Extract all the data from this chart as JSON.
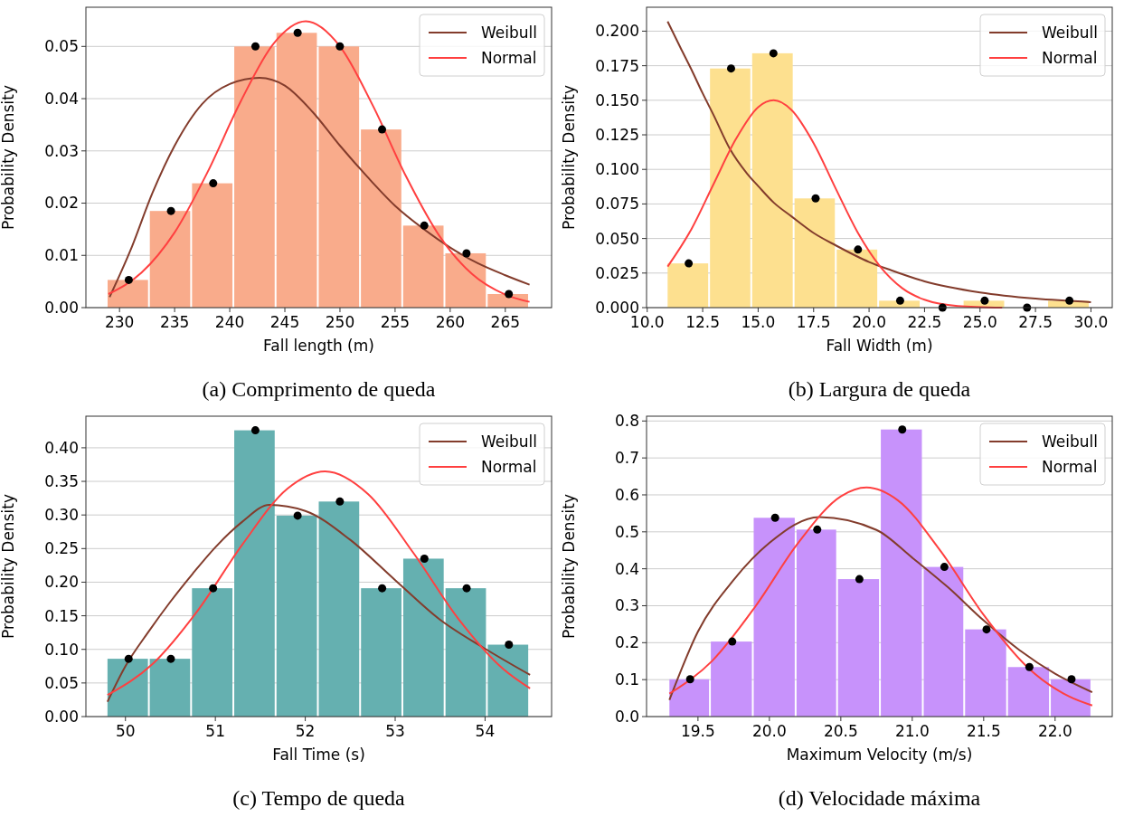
{
  "chart_data": [
    {
      "type": "histogram",
      "title": "(a) Comprimento de queda",
      "xlabel": "Fall length (m)",
      "ylabel": "Probability Density",
      "color": "#f9ab8b",
      "grid": "y",
      "legend": "top right",
      "bins": [
        228.92,
        232.75,
        236.58,
        240.41,
        244.24,
        248.07,
        251.9,
        255.73,
        259.56,
        263.4,
        267.23
      ],
      "values": [
        0.0053,
        0.0185,
        0.0238,
        0.05,
        0.0526,
        0.05,
        0.0341,
        0.0157,
        0.0104,
        0.0026
      ],
      "series": [
        {
          "type": "line",
          "name": "Weibull",
          "color": "#833c2c",
          "x": [
            229.1,
            231,
            233,
            235,
            237.5,
            240,
            242.7,
            245,
            247.5,
            250,
            252.5,
            255,
            257.5,
            260,
            262.5,
            265,
            267.2
          ],
          "values": [
            0.002,
            0.011,
            0.022,
            0.031,
            0.039,
            0.0428,
            0.044,
            0.0425,
            0.0375,
            0.031,
            0.025,
            0.0195,
            0.0152,
            0.0115,
            0.0085,
            0.0062,
            0.0044
          ]
        },
        {
          "type": "line",
          "name": "Normal",
          "color": "#ff4040",
          "x": [
            229,
            232,
            235,
            238,
            241,
            244,
            246.9,
            250,
            253,
            256,
            259,
            262,
            265,
            267.2
          ],
          "values": [
            0.0026,
            0.0067,
            0.0144,
            0.026,
            0.0395,
            0.0506,
            0.0548,
            0.05,
            0.0386,
            0.0251,
            0.0138,
            0.0064,
            0.0025,
            0.0011
          ]
        },
        {
          "type": "scatter",
          "color": "#000000",
          "marker": "circle",
          "x": [
            230.84,
            234.67,
            238.5,
            242.33,
            246.16,
            249.99,
            253.82,
            257.65,
            261.48,
            265.32
          ],
          "values": [
            0.0053,
            0.0185,
            0.0238,
            0.05,
            0.0526,
            0.05,
            0.0341,
            0.0157,
            0.0104,
            0.0026
          ]
        }
      ],
      "xlim": [
        226.95,
        269.2
      ],
      "ylim": [
        0,
        0.0575
      ],
      "xticks": [
        230,
        235,
        240,
        245,
        250,
        255,
        260,
        265
      ],
      "yticks": [
        {
          "value": 0,
          "label": "0.00"
        },
        0.01,
        0.02,
        0.03,
        0.04,
        0.05
      ]
    },
    {
      "type": "histogram",
      "title": "(b) Largura de queda",
      "xlabel": "Fall Width (m)",
      "ylabel": "Probability Density",
      "color": "#fde08f",
      "grid": "y",
      "legend": "top right",
      "bins": [
        10.92,
        12.83,
        14.73,
        16.64,
        18.54,
        20.45,
        22.36,
        24.26,
        26.17,
        28.07,
        29.98
      ],
      "values": [
        0.032,
        0.173,
        0.184,
        0.079,
        0.042,
        0.005,
        0,
        0.005,
        0,
        0.005
      ],
      "series": [
        {
          "type": "line",
          "name": "Weibull",
          "color": "#833c2c",
          "x": [
            10.92,
            11.5,
            12,
            12.5,
            13,
            13.72,
            14.5,
            15,
            15.7,
            16.5,
            17.5,
            18.5,
            20,
            21,
            22.5,
            25,
            27.5,
            30
          ],
          "values": [
            0.207,
            0.188,
            0.172,
            0.155,
            0.139,
            0.115,
            0.097,
            0.088,
            0.076,
            0.066,
            0.054,
            0.045,
            0.033,
            0.027,
            0.019,
            0.011,
            0.0065,
            0.004
          ]
        },
        {
          "type": "line",
          "name": "Normal",
          "color": "#ff4040",
          "x": [
            10.92,
            12,
            13,
            14,
            15,
            15.7,
            16.5,
            17.5,
            18.5,
            19.5,
            20.5,
            21.5,
            22.5,
            24,
            26
          ],
          "values": [
            0.0297,
            0.057,
            0.0897,
            0.122,
            0.145,
            0.15,
            0.143,
            0.119,
            0.086,
            0.054,
            0.0297,
            0.014,
            0.0057,
            0.0012,
            0
          ]
        },
        {
          "type": "scatter",
          "color": "#000000",
          "marker": "circle",
          "x": [
            11.87,
            13.78,
            15.69,
            17.59,
            19.5,
            21.4,
            23.31,
            25.21,
            27.12,
            29.03
          ],
          "values": [
            0.032,
            0.173,
            0.184,
            0.079,
            0.042,
            0.005,
            0,
            0.005,
            0,
            0.005
          ]
        }
      ],
      "xlim": [
        9.97,
        30.96
      ],
      "ylim": [
        0,
        0.2173
      ],
      "xticks": [
        {
          "value": 10,
          "label": "10.0"
        },
        12.5,
        {
          "value": 15,
          "label": "15.0"
        },
        17.5,
        {
          "value": 20,
          "label": "20.0"
        },
        22.5,
        {
          "value": 25,
          "label": "25.0"
        },
        27.5,
        {
          "value": 30,
          "label": "30.0"
        }
      ],
      "yticks": [
        {
          "value": 0,
          "label": "0.000"
        },
        0.025,
        {
          "value": 0.05,
          "label": "0.050"
        },
        0.075,
        {
          "value": 0.1,
          "label": "0.100"
        },
        0.125,
        {
          "value": 0.15,
          "label": "0.150"
        },
        0.175,
        {
          "value": 0.2,
          "label": "0.200"
        }
      ]
    },
    {
      "type": "histogram",
      "title": "(c) Tempo de queda",
      "xlabel": "Fall Time (s)",
      "ylabel": "Probability Density",
      "color": "#65b0b0",
      "grid": "y",
      "legend": "top right",
      "bins": [
        49.8,
        50.27,
        50.74,
        51.21,
        51.68,
        52.15,
        52.62,
        53.09,
        53.56,
        54.03,
        54.5
      ],
      "values": [
        0.086,
        0.086,
        0.191,
        0.426,
        0.299,
        0.32,
        0.191,
        0.235,
        0.191,
        0.107
      ],
      "series": [
        {
          "type": "line",
          "name": "Weibull",
          "color": "#833c2c",
          "x": [
            49.8,
            50,
            50.25,
            50.5,
            50.75,
            51,
            51.3,
            51.6,
            52,
            52.5,
            53,
            53.5,
            54,
            54.5
          ],
          "values": [
            0.022,
            0.075,
            0.125,
            0.171,
            0.213,
            0.252,
            0.29,
            0.315,
            0.306,
            0.263,
            0.203,
            0.144,
            0.101,
            0.062
          ]
        },
        {
          "type": "line",
          "name": "Normal",
          "color": "#ff4040",
          "x": [
            49.8,
            50.3,
            50.8,
            51.3,
            51.8,
            52.22,
            52.7,
            53.2,
            53.7,
            54.2,
            54.5
          ],
          "values": [
            0.032,
            0.078,
            0.157,
            0.256,
            0.339,
            0.365,
            0.331,
            0.244,
            0.146,
            0.071,
            0.042
          ]
        },
        {
          "type": "scatter",
          "color": "#000000",
          "marker": "circle",
          "x": [
            50.035,
            50.505,
            50.975,
            51.445,
            51.915,
            52.385,
            52.855,
            53.325,
            53.795,
            54.265
          ],
          "values": [
            0.086,
            0.086,
            0.191,
            0.426,
            0.299,
            0.32,
            0.191,
            0.235,
            0.191,
            0.107
          ]
        }
      ],
      "xlim": [
        49.56,
        54.74
      ],
      "ylim": [
        0,
        0.447
      ],
      "xticks": [
        50,
        51,
        52,
        53,
        54
      ],
      "yticks": [
        {
          "value": 0,
          "label": "0.00"
        },
        0.05,
        {
          "value": 0.1,
          "label": "0.10"
        },
        0.15,
        {
          "value": 0.2,
          "label": "0.20"
        },
        0.25,
        {
          "value": 0.3,
          "label": "0.30"
        },
        0.35,
        {
          "value": 0.4,
          "label": "0.40"
        }
      ]
    },
    {
      "type": "histogram",
      "title": "(d) Velocidade máxima",
      "xlabel": "Maximum Velocity (m/s)",
      "ylabel": "Probability Density",
      "color": "#c792fb",
      "grid": "y",
      "legend": "top right",
      "bins": [
        19.3,
        19.59,
        19.89,
        20.19,
        20.48,
        20.78,
        21.08,
        21.37,
        21.67,
        21.97,
        22.26
      ],
      "values": [
        0.101,
        0.203,
        0.538,
        0.506,
        0.372,
        0.777,
        0.405,
        0.236,
        0.134,
        0.101
      ],
      "series": [
        {
          "type": "line",
          "name": "Weibull",
          "color": "#833c2c",
          "x": [
            19.3,
            19.5,
            19.75,
            20,
            20.35,
            20.75,
            21,
            21.25,
            21.5,
            21.75,
            22,
            22.26
          ],
          "values": [
            0.045,
            0.23,
            0.37,
            0.47,
            0.54,
            0.505,
            0.43,
            0.35,
            0.26,
            0.18,
            0.116,
            0.066
          ]
        },
        {
          "type": "line",
          "name": "Normal",
          "color": "#ff4040",
          "x": [
            19.3,
            19.6,
            19.9,
            20.2,
            20.5,
            20.68,
            20.9,
            21.2,
            21.5,
            21.8,
            22.1,
            22.26
          ],
          "values": [
            0.062,
            0.151,
            0.297,
            0.469,
            0.596,
            0.62,
            0.585,
            0.447,
            0.275,
            0.136,
            0.054,
            0.03
          ]
        },
        {
          "type": "scatter",
          "color": "#000000",
          "marker": "circle",
          "x": [
            19.445,
            19.74,
            20.04,
            20.335,
            20.63,
            20.93,
            21.225,
            21.52,
            21.82,
            22.115
          ],
          "values": [
            0.101,
            0.203,
            0.538,
            0.506,
            0.372,
            0.777,
            0.405,
            0.236,
            0.134,
            0.101
          ]
        }
      ],
      "xlim": [
        19.14,
        22.4
      ],
      "ylim": [
        0,
        0.813
      ],
      "xticks": [
        19.5,
        {
          "value": 20,
          "label": "20.0"
        },
        20.5,
        {
          "value": 21,
          "label": "21.0"
        },
        21.5,
        {
          "value": 22,
          "label": "22.0"
        }
      ],
      "yticks": [
        {
          "value": 0,
          "label": "0.0"
        },
        0.1,
        0.2,
        0.3,
        0.4,
        0.5,
        0.6,
        0.7,
        0.8
      ]
    }
  ]
}
